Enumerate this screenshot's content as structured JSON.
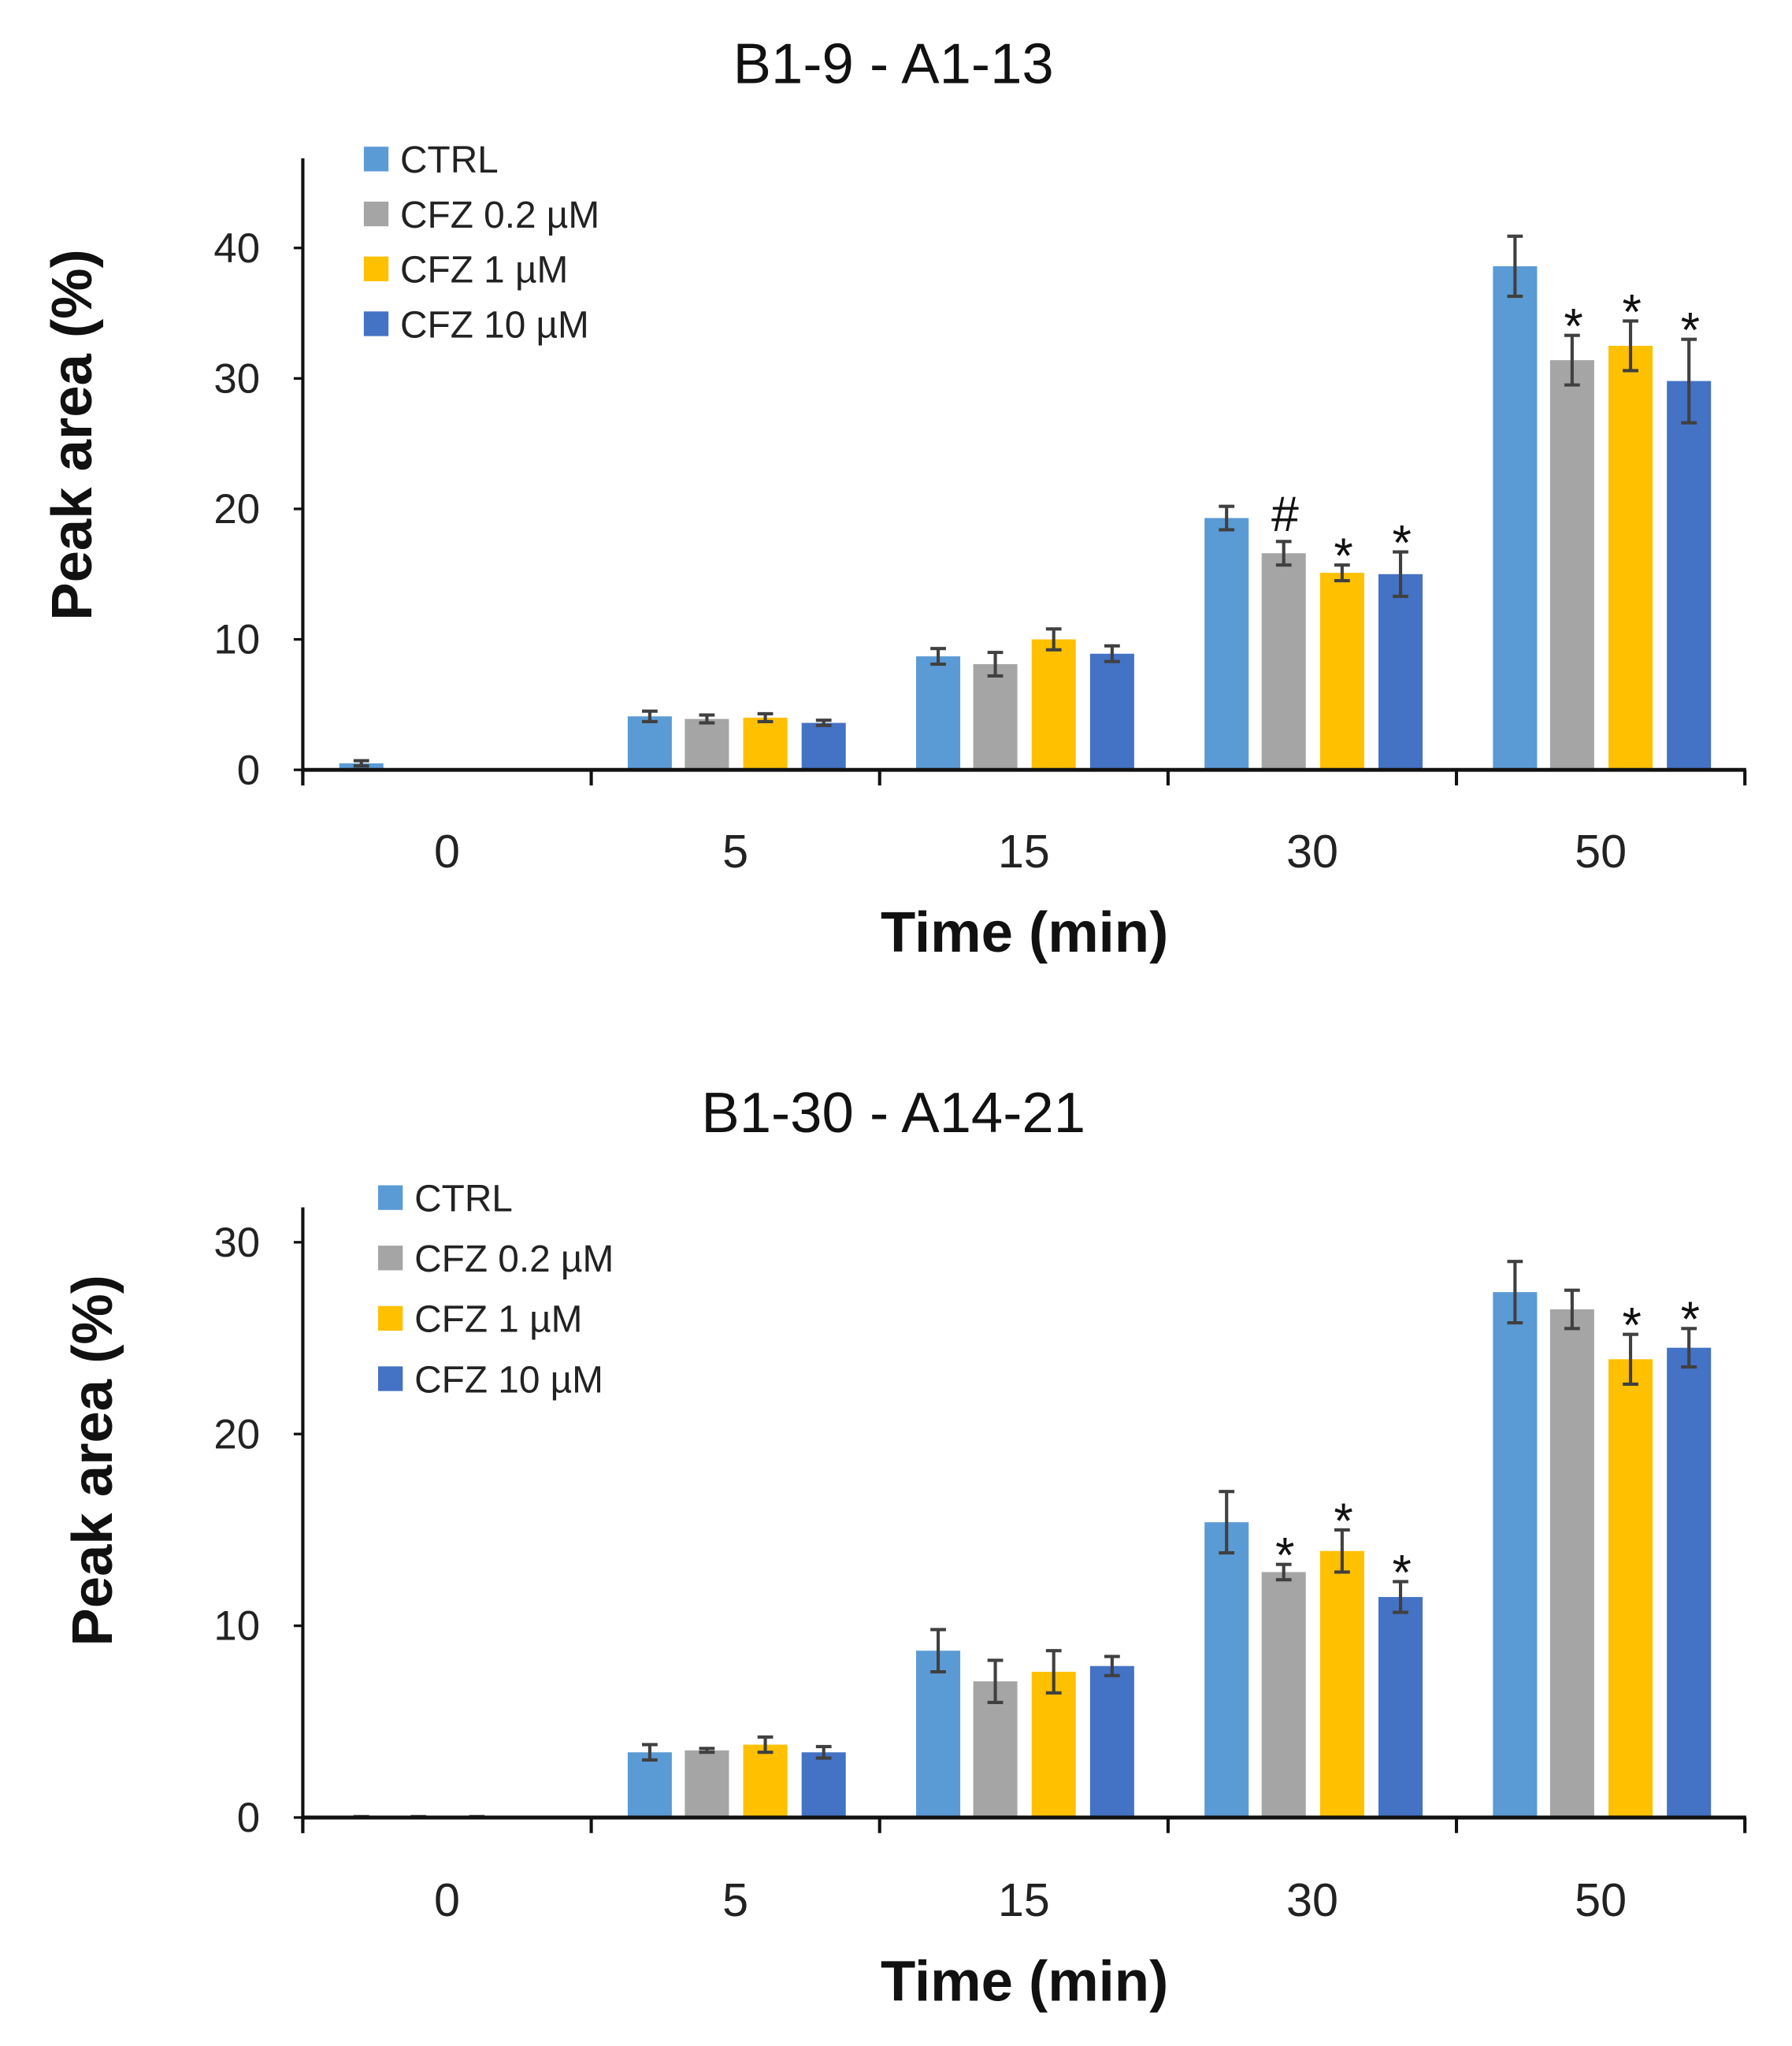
{
  "chart_data": [
    {
      "type": "bar",
      "title": "B1-9   -   A1-13",
      "xlabel": "Time (min)",
      "ylabel": "Peak area (%)",
      "ylim": [
        0,
        45
      ],
      "yticks": [
        0,
        10,
        20,
        30,
        40
      ],
      "categories": [
        "0",
        "5",
        "15",
        "30",
        "50"
      ],
      "legend_position": "top-left",
      "series": [
        {
          "name": "CTRL",
          "color": "#5B9BD5",
          "values": [
            0.5,
            4.1,
            8.7,
            19.3,
            38.6
          ],
          "errors": [
            0.2,
            0.4,
            0.6,
            0.9,
            2.3
          ],
          "marks": [
            "",
            "",
            "",
            "",
            ""
          ]
        },
        {
          "name": "CFZ 0.2 µM",
          "color": "#A5A5A5",
          "values": [
            null,
            3.9,
            8.1,
            16.6,
            31.4
          ],
          "errors": [
            null,
            0.3,
            0.9,
            0.9,
            1.9
          ],
          "marks": [
            "",
            "",
            "",
            "#",
            "*"
          ]
        },
        {
          "name": "CFZ 1 µM",
          "color": "#FFC000",
          "values": [
            null,
            4.0,
            10.0,
            15.1,
            32.5
          ],
          "errors": [
            null,
            0.3,
            0.8,
            0.6,
            1.9
          ],
          "marks": [
            "",
            "",
            "",
            "*",
            "*"
          ]
        },
        {
          "name": "CFZ 10 µM",
          "color": "#4472C4",
          "values": [
            null,
            3.6,
            8.9,
            15.0,
            29.8
          ],
          "errors": [
            null,
            0.2,
            0.6,
            1.7,
            3.2
          ],
          "marks": [
            "",
            "",
            "",
            "*",
            "*"
          ]
        }
      ]
    },
    {
      "type": "bar",
      "title": "B1-30   -   A14-21",
      "xlabel": "Time (min)",
      "ylabel": "Peak area (%)",
      "ylim": [
        0,
        32
      ],
      "yticks": [
        0,
        10,
        20,
        30
      ],
      "categories": [
        "0",
        "5",
        "15",
        "30",
        "50"
      ],
      "legend_position": "top-left",
      "series": [
        {
          "name": "CTRL",
          "color": "#5B9BD5",
          "values": [
            0,
            3.4,
            8.7,
            15.4,
            27.4
          ],
          "errors": [
            0.05,
            0.4,
            1.1,
            1.6,
            1.6
          ],
          "marks": [
            "",
            "",
            "",
            "",
            ""
          ]
        },
        {
          "name": "CFZ 0.2 µM",
          "color": "#A5A5A5",
          "values": [
            0,
            3.5,
            7.1,
            12.8,
            26.5
          ],
          "errors": [
            0.05,
            0.1,
            1.1,
            0.4,
            1.0
          ],
          "marks": [
            "",
            "",
            "",
            "*",
            ""
          ]
        },
        {
          "name": "CFZ 1 µM",
          "color": "#FFC000",
          "values": [
            0,
            3.8,
            7.6,
            13.9,
            23.9
          ],
          "errors": [
            0.05,
            0.4,
            1.1,
            1.1,
            1.3
          ],
          "marks": [
            "",
            "",
            "",
            "*",
            "*"
          ]
        },
        {
          "name": "CFZ 10 µM",
          "color": "#4472C4",
          "values": [
            null,
            3.4,
            7.9,
            11.5,
            24.5
          ],
          "errors": [
            null,
            0.3,
            0.5,
            0.8,
            1.0
          ],
          "marks": [
            "",
            "",
            "",
            "*",
            "*"
          ]
        }
      ]
    }
  ]
}
